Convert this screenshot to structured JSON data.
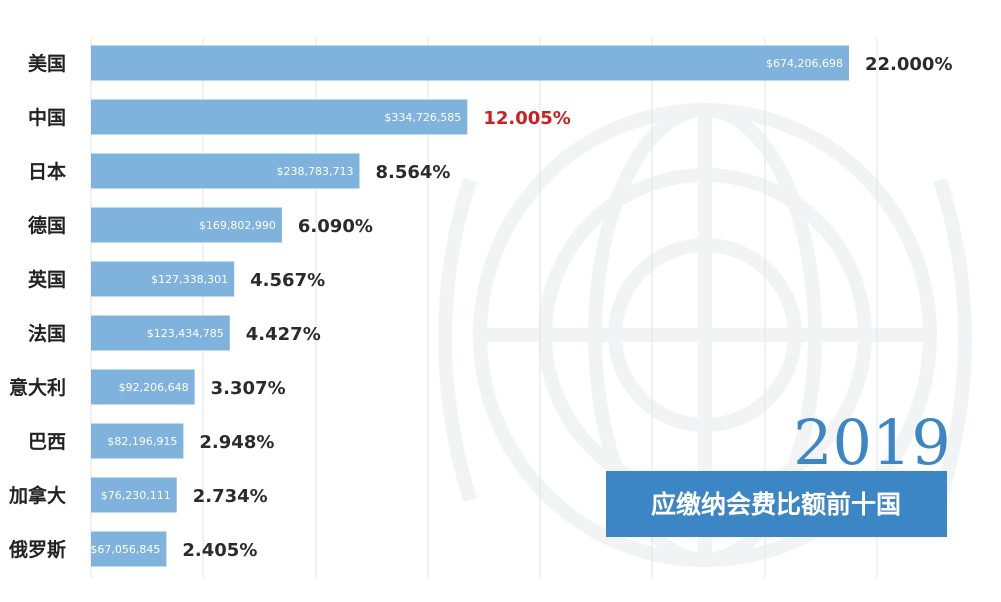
{
  "chart_data": {
    "type": "bar",
    "orientation": "horizontal",
    "categories": [
      "美国",
      "中国",
      "日本",
      "德国",
      "英国",
      "法国",
      "意大利",
      "巴西",
      "加拿大",
      "俄罗斯"
    ],
    "values": [
      674206698,
      334726585,
      238783713,
      169802990,
      127338301,
      123434785,
      92206648,
      82196915,
      76230111,
      67056845
    ],
    "value_labels": [
      "$674,206,698",
      "$334,726,585",
      "$238,783,713",
      "$169,802,990",
      "$127,338,301",
      "$123,434,785",
      "$92,206,648",
      "$82,196,915",
      "$76,230,111",
      "$67,056,845"
    ],
    "percent_labels": [
      "22.000%",
      "12.005%",
      "8.564%",
      "6.090%",
      "4.567%",
      "4.427%",
      "3.307%",
      "2.948%",
      "2.734%",
      "2.405%"
    ],
    "highlight_category": "中国",
    "title": "",
    "xlabel": "",
    "ylabel": "",
    "xlim": [
      0,
      700000000
    ],
    "grid": "vertical",
    "year": "2019",
    "banner": "应缴纳会费比额前十国"
  },
  "colors": {
    "bar": "#7fb2dc",
    "highlight_text": "#cc1f24",
    "percent_text": "#2b2b2b",
    "banner_bg": "#3c86c6",
    "year_text": "#3c86c6",
    "grid": "#e3e3e3",
    "emblem": "#f1f3f5"
  }
}
